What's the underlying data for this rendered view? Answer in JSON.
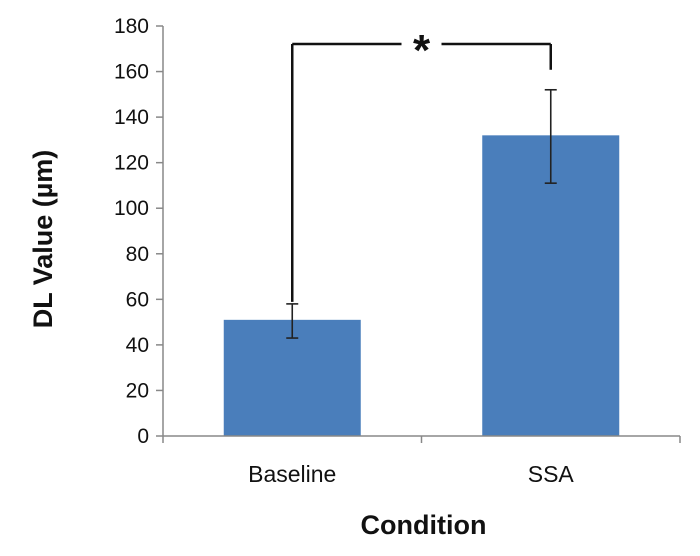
{
  "chart_data": {
    "type": "bar",
    "categories": [
      "Baseline",
      "SSA"
    ],
    "values": [
      51,
      132
    ],
    "error": [
      {
        "low": 43,
        "high": 58
      },
      {
        "low": 111,
        "high": 152
      }
    ],
    "xlabel": "Condition",
    "ylabel": "DL Value (µm)",
    "ylim": [
      0,
      180
    ],
    "yticks": [
      0,
      20,
      40,
      60,
      80,
      100,
      120,
      140,
      160,
      180
    ],
    "grid": false,
    "legend": "none",
    "bar_color": "#4a7ebb",
    "significance": {
      "marker": "*",
      "between": [
        "Baseline",
        "SSA"
      ]
    }
  }
}
